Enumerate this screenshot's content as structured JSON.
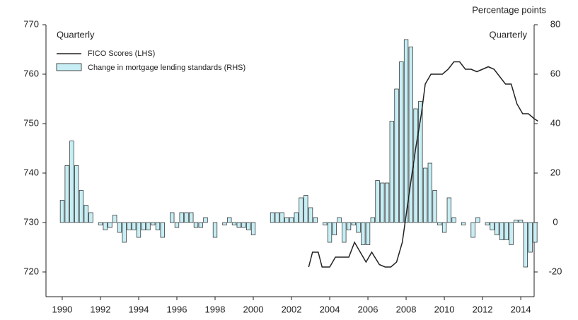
{
  "chart_data": {
    "type": "bar-line",
    "left_label": "Quarterly",
    "right_label": "Quarterly",
    "y2_unit": "Percentage points",
    "xlim": [
      1989.15,
      2014.7
    ],
    "xticks": [
      1990,
      1992,
      1994,
      1996,
      1998,
      2000,
      2002,
      2004,
      2006,
      2008,
      2010,
      2012,
      2014
    ],
    "ylim": [
      715,
      770
    ],
    "yticks": [
      720,
      730,
      740,
      750,
      760,
      770
    ],
    "y2lim": [
      -30,
      80
    ],
    "y2ticks": [
      -20,
      0,
      20,
      40,
      60,
      80
    ],
    "series": [
      {
        "name": "FICO Scores (LHS)",
        "type": "line",
        "color": "#222222",
        "axis": "y",
        "x": [
          2002.9,
          2003.1,
          2003.4,
          2003.6,
          2004.0,
          2004.3,
          2004.7,
          2005.0,
          2005.3,
          2005.6,
          2005.9,
          2006.2,
          2006.6,
          2006.9,
          2007.2,
          2007.5,
          2007.8,
          2008.2,
          2008.5,
          2008.8,
          2009.0,
          2009.3,
          2009.6,
          2009.9,
          2010.2,
          2010.5,
          2010.8,
          2011.1,
          2011.4,
          2011.7,
          2012.0,
          2012.3,
          2012.6,
          2012.9,
          2013.2,
          2013.5,
          2013.8,
          2014.1,
          2014.4,
          2014.7,
          2014.9
        ],
        "values": [
          721,
          724,
          724,
          721,
          721,
          723,
          723,
          723,
          726,
          724,
          722,
          724,
          721.5,
          721,
          721,
          722,
          726,
          737,
          745,
          752,
          758,
          760,
          760,
          760,
          761,
          762.5,
          762.5,
          761,
          761,
          760.5,
          761,
          761.5,
          761,
          759.5,
          758,
          758,
          754,
          752,
          752,
          751,
          750.5
        ]
      },
      {
        "name": "Change in mortgage lending standards (RHS)",
        "type": "bar",
        "color": "#c6eef4",
        "axis": "y2",
        "x": [
          1990,
          1990.25,
          1990.5,
          1990.75,
          1991,
          1991.25,
          1991.5,
          1991.75,
          1992,
          1992.25,
          1992.5,
          1992.75,
          1993,
          1993.25,
          1993.5,
          1993.75,
          1994,
          1994.25,
          1994.5,
          1994.75,
          1995,
          1995.25,
          1995.5,
          1995.75,
          1996,
          1996.25,
          1996.5,
          1996.75,
          1997,
          1997.25,
          1997.5,
          1997.75,
          1998,
          1998.25,
          1998.5,
          1998.75,
          1999,
          1999.25,
          1999.5,
          1999.75,
          2000,
          2000.25,
          2000.5,
          2000.75,
          2001,
          2001.25,
          2001.5,
          2001.75,
          2002,
          2002.25,
          2002.5,
          2002.75,
          2003,
          2003.25,
          2003.5,
          2003.75,
          2004,
          2004.25,
          2004.5,
          2004.75,
          2005,
          2005.25,
          2005.5,
          2005.75,
          2006,
          2006.25,
          2006.5,
          2006.75,
          2007,
          2007.25,
          2007.5,
          2007.75,
          2008,
          2008.25,
          2008.5,
          2008.75,
          2009,
          2009.25,
          2009.5,
          2009.75,
          2010,
          2010.25,
          2010.5,
          2010.75,
          2011,
          2011.25,
          2011.5,
          2011.75,
          2012,
          2012.25,
          2012.5,
          2012.75,
          2013,
          2013.25,
          2013.5,
          2013.75,
          2014,
          2014.25,
          2014.5,
          2014.75
        ],
        "values": [
          9,
          23,
          33,
          23,
          13,
          7,
          4,
          0,
          -1,
          -3,
          -2,
          3,
          -4,
          -8,
          -3,
          -3,
          -6,
          -3,
          -3,
          -1,
          -3,
          -6,
          0,
          4,
          -2,
          4,
          4,
          4,
          -2,
          -2,
          2,
          0,
          -6,
          0,
          -1,
          2,
          -1,
          -2,
          -2,
          -3,
          -5,
          0,
          0,
          0,
          4,
          4,
          4,
          2,
          2,
          4,
          10,
          11,
          6,
          2,
          0,
          -1,
          -8,
          -5,
          2,
          -8,
          -3,
          -1,
          -4,
          -9,
          -9,
          2,
          17,
          16,
          16,
          41,
          54,
          65,
          74,
          71,
          46,
          49,
          22,
          24,
          13,
          -1,
          -4,
          10,
          2,
          0,
          -1,
          0,
          -6,
          2,
          0,
          -1,
          -3,
          -5,
          -7,
          -7,
          -9,
          1,
          1,
          -18,
          -12,
          -8
        ]
      }
    ]
  }
}
